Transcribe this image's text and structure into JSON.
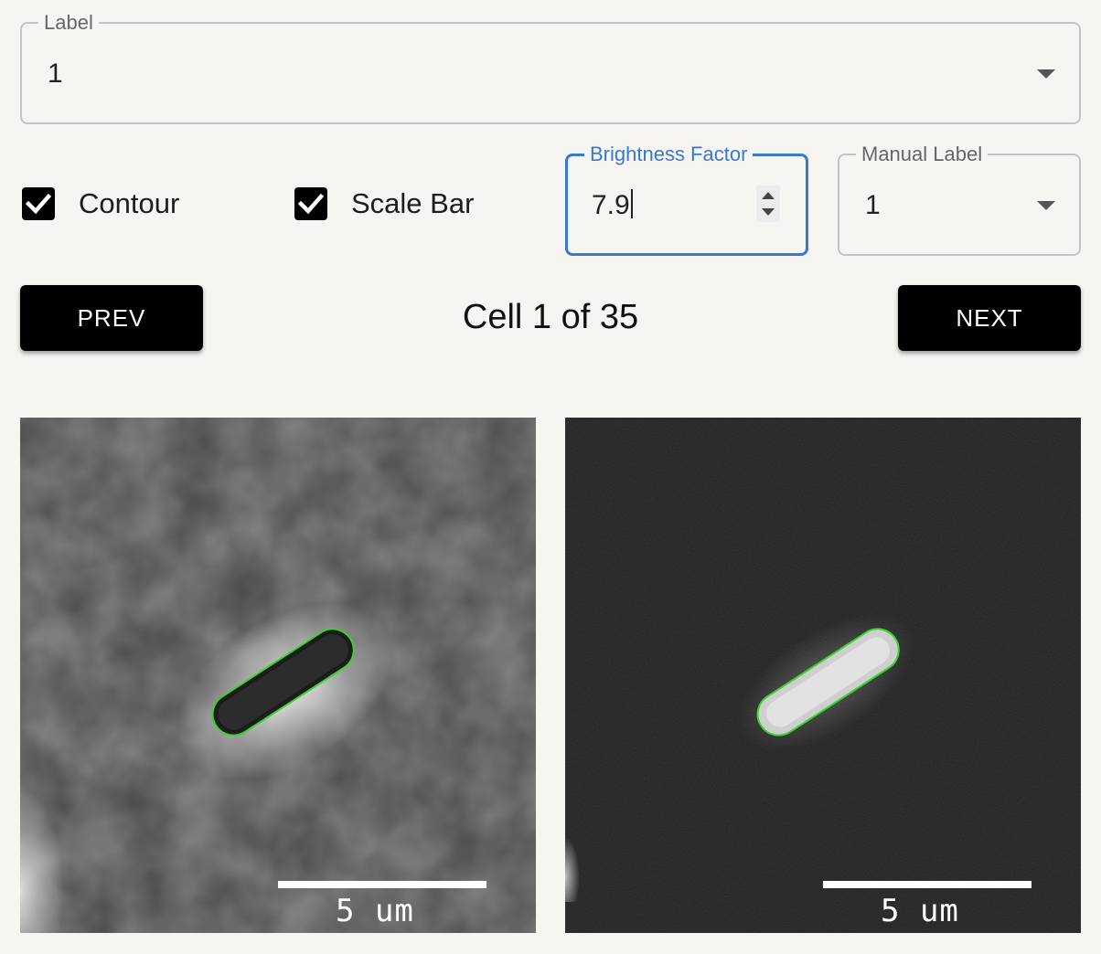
{
  "label_select": {
    "legend": "Label",
    "value": "1"
  },
  "options": {
    "contour_label": "Contour",
    "contour_checked": true,
    "scalebar_label": "Scale Bar",
    "scalebar_checked": true
  },
  "brightness": {
    "legend": "Brightness Factor",
    "value": "7.9"
  },
  "manual_label": {
    "legend": "Manual Label",
    "value": "1"
  },
  "navigation": {
    "prev_label": "PREV",
    "next_label": "NEXT",
    "counter_text": "Cell 1 of 35"
  },
  "images": {
    "phase_scale_text": "5 um",
    "fluor_scale_text": "5 um",
    "contour_color": "#39d42c"
  },
  "icons": {
    "checkbox": "check-icon",
    "dropdown": "caret-down-icon",
    "spinner": "spinner-arrows-icon"
  }
}
